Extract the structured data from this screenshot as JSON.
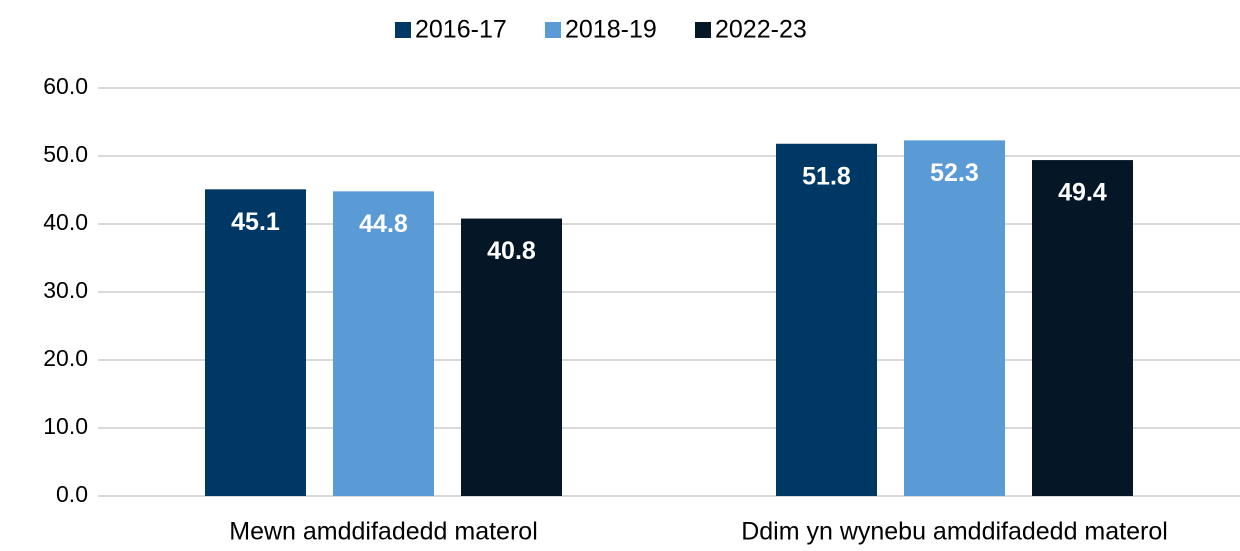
{
  "chart_data": {
    "type": "bar",
    "categories": [
      "Mewn amddifadedd materol",
      "Ddim yn wynebu amddifadedd materol"
    ],
    "series": [
      {
        "name": "2016-17",
        "color": "#003865",
        "values": [
          45.1,
          51.8
        ]
      },
      {
        "name": "2018-19",
        "color": "#5b9bd5",
        "values": [
          44.8,
          52.3
        ]
      },
      {
        "name": "2022-23",
        "color": "#051626",
        "values": [
          40.8,
          49.4
        ]
      }
    ],
    "ylim": [
      0,
      60
    ],
    "yticks": [
      {
        "value": 0,
        "label": "0.0"
      },
      {
        "value": 10,
        "label": "10.0"
      },
      {
        "value": 20,
        "label": "20.0"
      },
      {
        "value": 30,
        "label": "30.0"
      },
      {
        "value": 40,
        "label": "40.0"
      },
      {
        "value": 50,
        "label": "50.0"
      },
      {
        "value": 60,
        "label": "60.0"
      }
    ],
    "grid": true,
    "legend": "top"
  }
}
